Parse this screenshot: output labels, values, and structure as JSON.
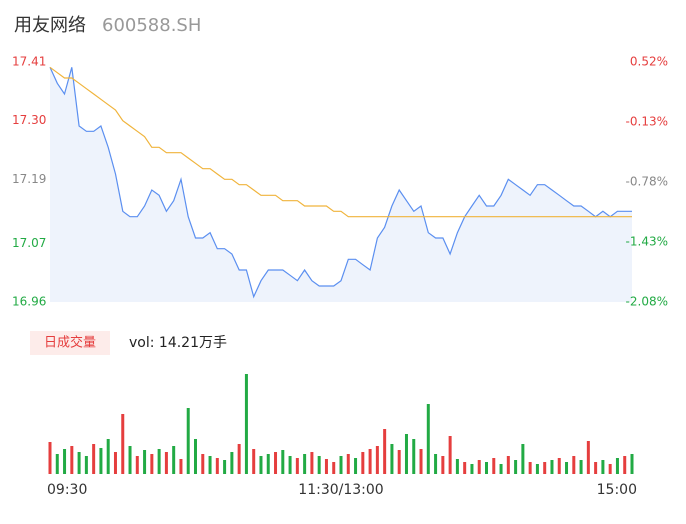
{
  "chart_data": {
    "type": "intraday",
    "title": "用友网络",
    "subtitle": "600588.SH",
    "volume_button": "日成交量",
    "volume_label": "vol: 14.21万手",
    "xlim": [
      0,
      80
    ],
    "xticks": [
      {
        "value": 0,
        "label": "09:30"
      },
      {
        "value": 40,
        "label": "11:30/13:00"
      },
      {
        "value": 80,
        "label": "15:00"
      }
    ],
    "ylim": [
      16.96,
      17.41
    ],
    "yticks": [
      17.41,
      {
        "value": 17.3,
        "label": "17.30"
      },
      17.19,
      17.07,
      16.96
    ],
    "y2lim": [
      -2.08,
      0.52
    ],
    "y2ticks": [
      {
        "value": 0.52,
        "label": "0.52%"
      },
      {
        "value": -0.13,
        "label": "-0.13%"
      },
      {
        "value": -0.78,
        "label": "-0.78%"
      },
      {
        "value": -1.43,
        "label": "-1.43%"
      },
      {
        "value": -2.08,
        "label": "-2.08%"
      }
    ],
    "tick_colors": [
      "#e53e3e",
      "#e53e3e",
      "#888888",
      "#22aa44",
      "#22aa44"
    ],
    "series": [
      {
        "color": "#5b8ff0",
        "fill": "#eef3fc",
        "values": [
          17.4,
          17.37,
          17.35,
          17.4,
          17.29,
          17.28,
          17.28,
          17.29,
          17.25,
          17.2,
          17.13,
          17.12,
          17.12,
          17.14,
          17.17,
          17.16,
          17.13,
          17.15,
          17.19,
          17.12,
          17.08,
          17.08,
          17.09,
          17.06,
          17.06,
          17.05,
          17.02,
          17.02,
          16.97,
          17.0,
          17.02,
          17.02,
          17.02,
          17.01,
          17.0,
          17.02,
          17.0,
          16.99,
          16.99,
          16.99,
          17.0,
          17.04,
          17.04,
          17.03,
          17.02,
          17.08,
          17.1,
          17.14,
          17.17,
          17.15,
          17.13,
          17.14,
          17.09,
          17.08,
          17.08,
          17.05,
          17.09,
          17.12,
          17.14,
          17.16,
          17.14,
          17.14,
          17.16,
          17.19,
          17.18,
          17.17,
          17.16,
          17.18,
          17.18,
          17.17,
          17.16,
          17.15,
          17.14,
          17.14,
          17.13,
          17.12,
          17.13,
          17.12,
          17.13,
          17.13,
          17.13
        ]
      },
      {
        "color": "#f0b43c",
        "values": [
          17.4,
          17.39,
          17.38,
          17.38,
          17.37,
          17.36,
          17.35,
          17.34,
          17.33,
          17.32,
          17.3,
          17.29,
          17.28,
          17.27,
          17.25,
          17.25,
          17.24,
          17.24,
          17.24,
          17.23,
          17.22,
          17.21,
          17.21,
          17.2,
          17.19,
          17.19,
          17.18,
          17.18,
          17.17,
          17.16,
          17.16,
          17.16,
          17.15,
          17.15,
          17.15,
          17.14,
          17.14,
          17.14,
          17.14,
          17.13,
          17.13,
          17.12,
          17.12,
          17.12,
          17.12,
          17.12,
          17.12,
          17.12,
          17.12,
          17.12,
          17.12,
          17.12,
          17.12,
          17.12,
          17.12,
          17.12,
          17.12,
          17.12,
          17.12,
          17.12,
          17.12,
          17.12,
          17.12,
          17.12,
          17.12,
          17.12,
          17.12,
          17.12,
          17.12,
          17.12,
          17.12,
          17.12,
          17.12,
          17.12,
          17.12,
          17.12,
          17.12,
          17.12,
          17.12,
          17.12,
          17.12
        ]
      }
    ],
    "volume": {
      "ylim": [
        0,
        100
      ],
      "values": [
        32,
        20,
        25,
        28,
        22,
        18,
        30,
        26,
        35,
        22,
        60,
        28,
        18,
        24,
        20,
        25,
        22,
        28,
        15,
        66,
        35,
        20,
        18,
        16,
        14,
        22,
        30,
        100,
        25,
        18,
        20,
        22,
        24,
        18,
        16,
        20,
        22,
        18,
        15,
        12,
        18,
        20,
        16,
        22,
        25,
        28,
        45,
        30,
        24,
        40,
        35,
        25,
        70,
        20,
        18,
        38,
        15,
        12,
        10,
        14,
        12,
        16,
        10,
        18,
        14,
        30,
        12,
        10,
        12,
        14,
        16,
        12,
        18,
        14,
        33,
        12,
        14,
        10,
        16,
        18,
        20
      ],
      "colors": [
        "#e53e3e",
        "#22aa44",
        "#22aa44",
        "#e53e3e",
        "#22aa44",
        "#22aa44",
        "#e53e3e",
        "#22aa44",
        "#22aa44",
        "#e53e3e",
        "#e53e3e",
        "#22aa44",
        "#e53e3e",
        "#22aa44",
        "#e53e3e",
        "#22aa44",
        "#e53e3e",
        "#22aa44",
        "#e53e3e",
        "#22aa44",
        "#22aa44",
        "#e53e3e",
        "#22aa44",
        "#e53e3e",
        "#22aa44",
        "#22aa44",
        "#e53e3e",
        "#22aa44",
        "#e53e3e",
        "#22aa44",
        "#22aa44",
        "#e53e3e",
        "#22aa44",
        "#22aa44",
        "#e53e3e",
        "#22aa44",
        "#e53e3e",
        "#22aa44",
        "#e53e3e",
        "#e53e3e",
        "#22aa44",
        "#e53e3e",
        "#22aa44",
        "#e53e3e",
        "#e53e3e",
        "#e53e3e",
        "#e53e3e",
        "#22aa44",
        "#e53e3e",
        "#22aa44",
        "#22aa44",
        "#e53e3e",
        "#22aa44",
        "#22aa44",
        "#e53e3e",
        "#e53e3e",
        "#22aa44",
        "#e53e3e",
        "#22aa44",
        "#e53e3e",
        "#22aa44",
        "#e53e3e",
        "#22aa44",
        "#e53e3e",
        "#22aa44",
        "#22aa44",
        "#e53e3e",
        "#22aa44",
        "#e53e3e",
        "#22aa44",
        "#e53e3e",
        "#22aa44",
        "#e53e3e",
        "#22aa44",
        "#e53e3e",
        "#e53e3e",
        "#22aa44",
        "#e53e3e",
        "#22aa44",
        "#e53e3e",
        "#22aa44"
      ]
    }
  }
}
